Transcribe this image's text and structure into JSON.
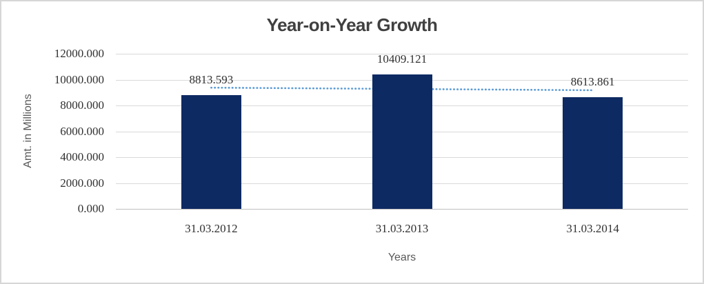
{
  "colors": {
    "background": "#ffffff",
    "frame_border": "#d6d6d6",
    "bar": "#0e2a63",
    "trendline": "#5b9bd5",
    "gridline": "#d9d9d9",
    "axis_line": "#bfbfbf",
    "title_text": "#404040",
    "value_text": "#303030",
    "axis_title_text": "#595959"
  },
  "chart_data": {
    "type": "bar",
    "title": "Year-on-Year Growth",
    "categories": [
      "31.03.2012",
      "31.03.2013",
      "31.03.2014"
    ],
    "values": [
      8813.593,
      10409.121,
      8613.861
    ],
    "data_labels": [
      "8813.593",
      "10409.121",
      "8613.861"
    ],
    "xlabel": "Years",
    "ylabel": "Amt. in Millions",
    "ylim": [
      0,
      12000
    ],
    "ytick_step": 2000,
    "yticks": [
      "12000.000",
      "10000.000",
      "8000.000",
      "6000.000",
      "4000.000",
      "2000.000",
      "0.000"
    ],
    "grid": true,
    "legend": "none",
    "trendline": {
      "type": "linear",
      "style": "dotted",
      "series": "values"
    }
  }
}
